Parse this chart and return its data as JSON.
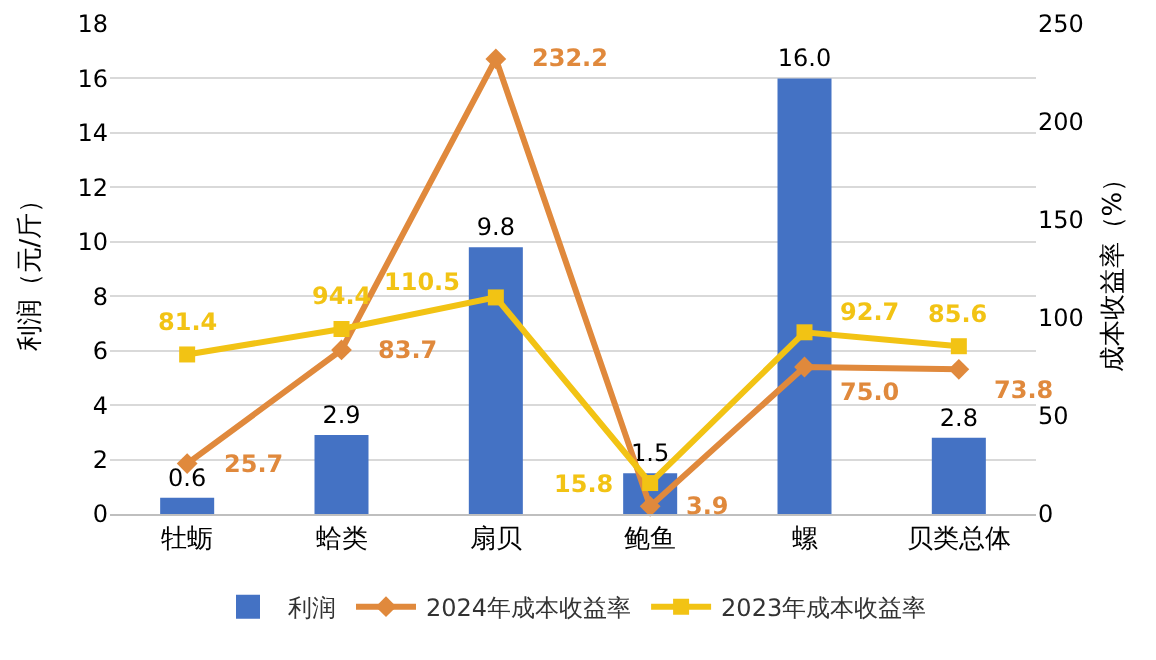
{
  "chart_data": {
    "type": "bar",
    "categories": [
      "牡蛎",
      "蛤类",
      "扇贝",
      "鲍鱼",
      "螺",
      "贝类总体"
    ],
    "ylabel": "利润（元/斤）",
    "y2label": "成本收益率（%）",
    "ylim": [
      0,
      18
    ],
    "yticks": [
      0,
      2,
      4,
      6,
      8,
      10,
      12,
      14,
      16,
      18
    ],
    "y2lim": [
      0,
      250
    ],
    "y2ticks": [
      0,
      50,
      100,
      150,
      200,
      250
    ],
    "grid": "y",
    "legend": "bottom",
    "data_labels": true,
    "series": [
      {
        "name": "利润",
        "color": "#4472c4",
        "values": [
          0.6,
          2.9,
          9.8,
          1.5,
          16.0,
          2.8
        ],
        "value_labels": [
          "0.6",
          "2.9",
          "9.8",
          "1.5",
          "16.0",
          "2.8"
        ]
      },
      {
        "name": "2024年成本收益率",
        "type": "line",
        "axis": "y2",
        "marker": "diamond",
        "color": "#e0893c",
        "values": [
          25.7,
          83.7,
          232.2,
          3.9,
          75.0,
          73.8
        ],
        "value_labels": [
          "25.7",
          "83.7",
          "232.2",
          "3.9",
          "75.0",
          "73.8"
        ]
      },
      {
        "name": "2023年成本收益率",
        "type": "line",
        "axis": "y2",
        "marker": "square",
        "color": "#f2c314",
        "values": [
          81.4,
          94.4,
          110.5,
          15.8,
          92.7,
          85.6
        ],
        "value_labels": [
          "81.4",
          "94.4",
          "110.5",
          "15.8",
          "92.7",
          "85.6"
        ]
      }
    ]
  }
}
